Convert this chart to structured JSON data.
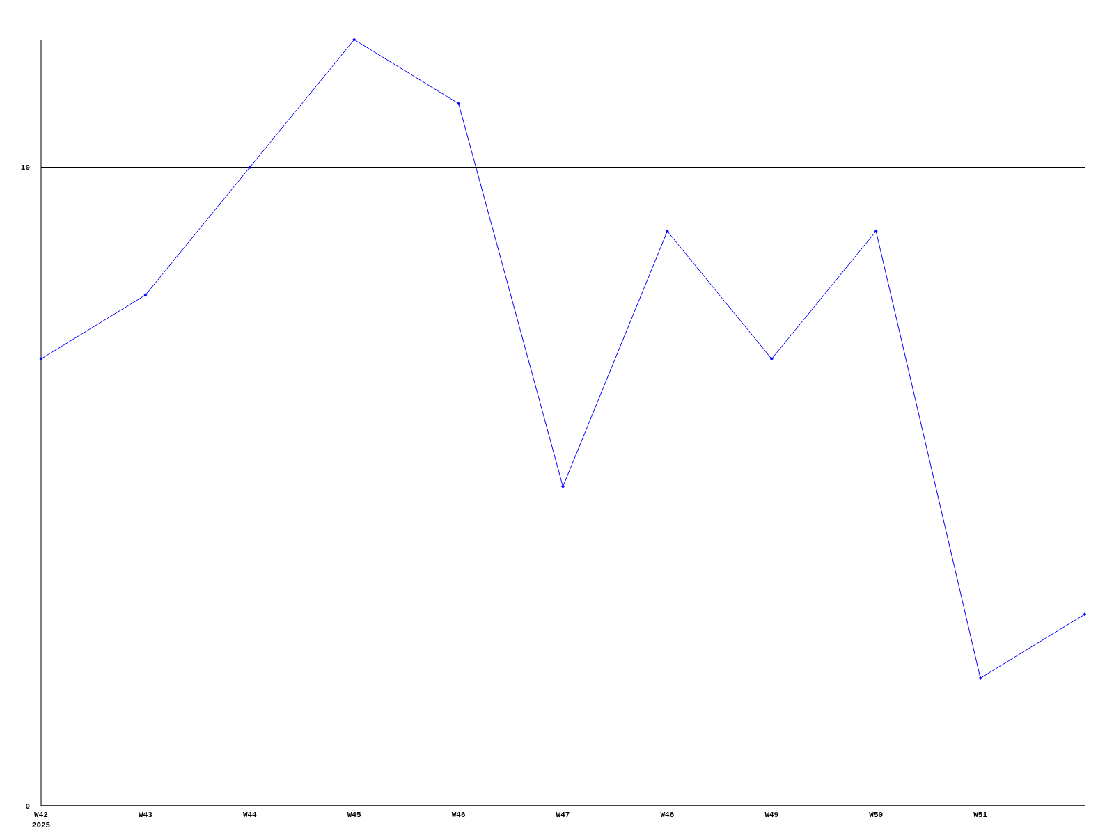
{
  "chart_data": {
    "type": "line",
    "categories": [
      "W42\n2025",
      "W43",
      "W44",
      "W45",
      "W46",
      "W47",
      "W48",
      "W49",
      "W50",
      "W51",
      null
    ],
    "series": [
      {
        "color": "#0000ff",
        "values": [
          7,
          8,
          10,
          12,
          11,
          5,
          9,
          7,
          9,
          2,
          3
        ]
      }
    ],
    "ylim": [
      0,
      12
    ],
    "yticks": [
      0,
      10
    ],
    "grid": "y",
    "marker": "diamond",
    "line_style": "solid"
  }
}
